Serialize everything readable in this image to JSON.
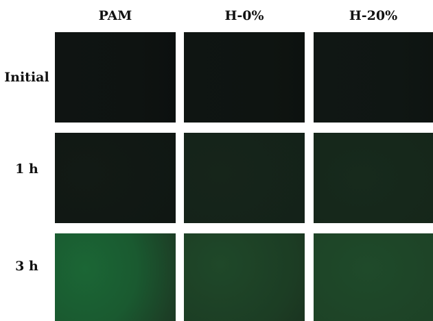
{
  "columns": [
    "PAM",
    "H-0%",
    "H-20%"
  ],
  "rows": [
    "Initial",
    "1 h",
    "3 h"
  ],
  "panel_tints": [
    [
      "#0e1311",
      "#0e1411",
      "#0f1613"
    ],
    [
      "#101713",
      "#142219",
      "#15261a"
    ],
    [
      "#1b6635",
      "#1f4829",
      "#1f4a2a"
    ]
  ]
}
